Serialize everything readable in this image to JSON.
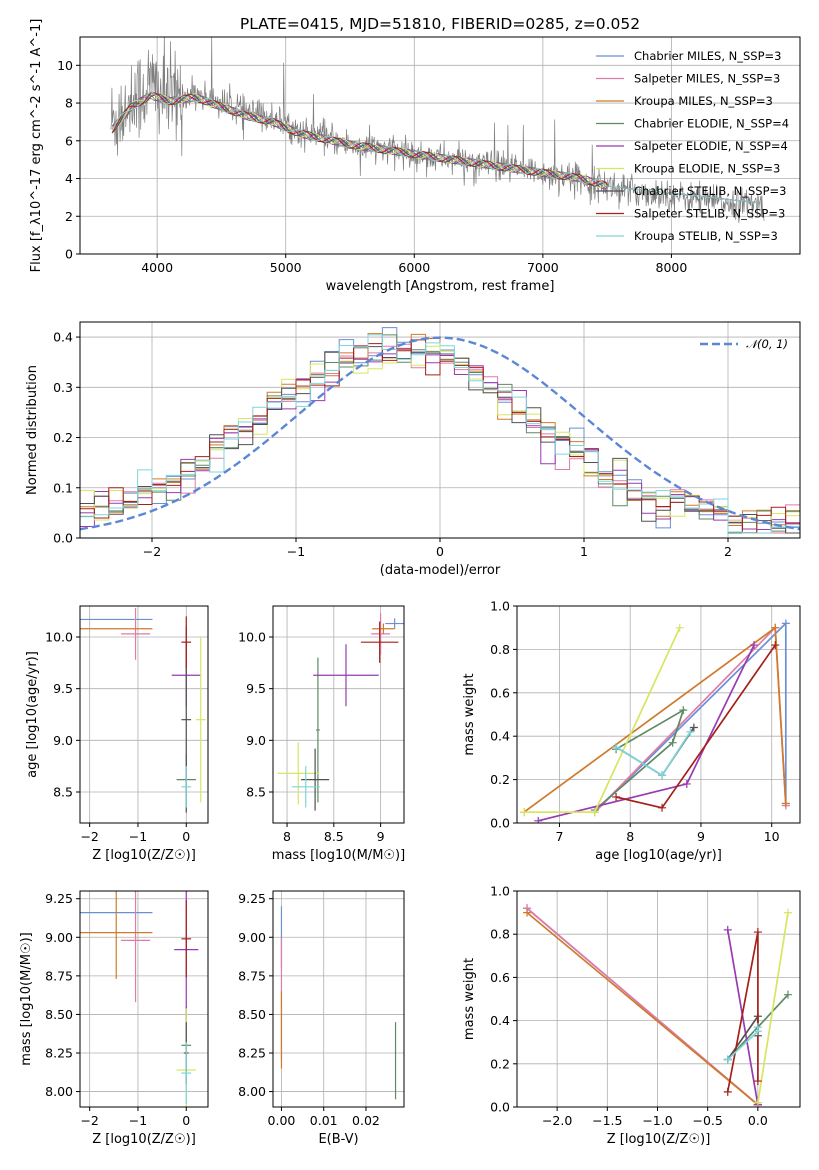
{
  "title": "PLATE=0415, MJD=51810, FIBERID=0285, z=0.052",
  "colors": {
    "data": "#7f7f7f",
    "models": [
      "#6a8fd4",
      "#e07aa9",
      "#cf7a2b",
      "#5e8a62",
      "#9a3ab2",
      "#d8e562",
      "#515151",
      "#a52018",
      "#7dd6db"
    ],
    "gaussian": "#5b87d6"
  },
  "chart_data": [
    {
      "id": "spectrum",
      "type": "line",
      "xlabel": "wavelength [Angstrom, rest frame]",
      "ylabel": "Flux [f_λ10^-17 erg cm^-2 s^-1 A^-1]",
      "xlim": [
        3400,
        9000
      ],
      "ylim": [
        0,
        11.5
      ],
      "xticks": [
        4000,
        5000,
        6000,
        7000,
        8000
      ],
      "yticks": [
        0,
        2,
        4,
        6,
        8,
        10
      ],
      "legend_position": "top-right",
      "data_series": {
        "name": "",
        "x": [
          3650,
          3800,
          3950,
          4100,
          4300,
          4500,
          4700,
          4900,
          5100,
          5300,
          5500,
          5700,
          5900,
          6100,
          6300,
          6500,
          6700,
          6900,
          7100,
          7300,
          7500,
          7700,
          7900,
          8100,
          8300,
          8500,
          8700
        ],
        "y": [
          7.0,
          8.0,
          9.0,
          8.2,
          8.5,
          8.0,
          7.5,
          7.2,
          6.5,
          6.2,
          5.8,
          5.6,
          5.4,
          5.2,
          5.0,
          4.8,
          4.6,
          4.4,
          4.2,
          4.0,
          3.6,
          3.3,
          3.2,
          3.0,
          2.8,
          2.7,
          2.6
        ]
      },
      "series": [
        {
          "name": "Chabrier MILES, N_SSP=3"
        },
        {
          "name": "Salpeter MILES, N_SSP=3"
        },
        {
          "name": "Kroupa MILES, N_SSP=3"
        },
        {
          "name": "Chabrier ELODIE, N_SSP=4"
        },
        {
          "name": "Salpeter ELODIE, N_SSP=4"
        },
        {
          "name": "Kroupa ELODIE, N_SSP=3"
        },
        {
          "name": "Chabrier STELIB, N_SSP=3"
        },
        {
          "name": "Salpeter STELIB, N_SSP=3"
        },
        {
          "name": "Kroupa STELIB, N_SSP=3"
        }
      ],
      "model_x": [
        3650,
        3800,
        3950,
        4100,
        4300,
        4500,
        4700,
        4900,
        5100,
        5300,
        5500,
        5700,
        5900,
        6100,
        6300,
        6500,
        6700,
        6900,
        7100,
        7300,
        7500
      ],
      "model_y": [
        6.6,
        7.8,
        8.4,
        8.1,
        8.3,
        7.8,
        7.3,
        7.0,
        6.4,
        6.1,
        5.8,
        5.6,
        5.4,
        5.2,
        5.0,
        4.8,
        4.6,
        4.4,
        4.2,
        4.0,
        3.6
      ]
    },
    {
      "id": "residuals",
      "type": "line",
      "xlabel": "(data-model)/error",
      "ylabel": "Normed distribution",
      "xlim": [
        -2.5,
        2.5
      ],
      "ylim": [
        0,
        0.43
      ],
      "xticks": [
        -2,
        -1,
        0,
        1,
        2
      ],
      "yticks": [
        0.0,
        0.1,
        0.2,
        0.3,
        0.4
      ],
      "legend": "𝒩(0, 1)",
      "legend_position": "top-right",
      "bin_width": 0.1
    },
    {
      "id": "age-vs-Z",
      "type": "scatter",
      "xlabel": "Z [log10(Z/Z☉)]",
      "ylabel": "age [log10(age/yr)]",
      "xlim": [
        -2.2,
        0.45
      ],
      "ylim": [
        8.2,
        10.3
      ],
      "xticks": [
        -2,
        -1,
        0
      ],
      "yticks": [
        8.5,
        9.0,
        9.5,
        10.0
      ],
      "points": [
        {
          "x": -1.45,
          "xerr": 0.75,
          "y": 10.17,
          "yerr": 0.0
        },
        {
          "x": -1.05,
          "xerr": 0.3,
          "y": 10.03,
          "yerr": 0.25
        },
        {
          "x": -1.45,
          "xerr": 0.75,
          "y": 10.08,
          "yerr": 0.0
        },
        {
          "x": 0.0,
          "xerr": 0.2,
          "y": 8.62,
          "yerr": 0.25
        },
        {
          "x": 0.0,
          "xerr": 0.3,
          "y": 9.63,
          "yerr": 0.3
        },
        {
          "x": 0.3,
          "xerr": 0.1,
          "y": 9.2,
          "yerr": 0.8
        },
        {
          "x": 0.0,
          "xerr": 0.1,
          "y": 9.2,
          "yerr": 0.9
        },
        {
          "x": 0.0,
          "xerr": 0.1,
          "y": 9.95,
          "yerr": 0.25
        },
        {
          "x": 0.0,
          "xerr": 0.1,
          "y": 8.55,
          "yerr": 0.2
        }
      ]
    },
    {
      "id": "age-vs-mass",
      "type": "scatter",
      "xlabel": "mass [log10(M/M☉)]",
      "ylabel": "",
      "xlim": [
        7.85,
        9.25
      ],
      "ylim": [
        8.2,
        10.3
      ],
      "xticks": [
        8.0,
        8.5,
        9.0
      ],
      "yticks": [
        8.5,
        9.0,
        9.5,
        10.0
      ],
      "points": [
        {
          "x": 9.15,
          "xerr": 0.1,
          "y": 10.13,
          "yerr": 0.05
        },
        {
          "x": 9.0,
          "xerr": 0.1,
          "y": 10.03,
          "yerr": 0.2
        },
        {
          "x": 9.03,
          "xerr": 0.12,
          "y": 10.08,
          "yerr": 0.05
        },
        {
          "x": 8.33,
          "xerr": 0.02,
          "y": 9.1,
          "yerr": 0.7
        },
        {
          "x": 8.63,
          "xerr": 0.35,
          "y": 9.63,
          "yerr": 0.3
        },
        {
          "x": 8.12,
          "xerr": 0.22,
          "y": 8.68,
          "yerr": 0.3
        },
        {
          "x": 8.3,
          "xerr": 0.15,
          "y": 8.62,
          "yerr": 0.3
        },
        {
          "x": 8.99,
          "xerr": 0.2,
          "y": 9.95,
          "yerr": 0.2
        },
        {
          "x": 8.2,
          "xerr": 0.15,
          "y": 8.55,
          "yerr": 0.2
        }
      ]
    },
    {
      "id": "weight-vs-age",
      "type": "line",
      "xlabel": "age [log10(age/yr)]",
      "ylabel": "mass weight",
      "xlim": [
        6.4,
        10.4
      ],
      "ylim": [
        0.0,
        1.0
      ],
      "xticks": [
        7,
        8,
        9,
        10
      ],
      "yticks": [
        0.0,
        0.2,
        0.4,
        0.6,
        0.8,
        1.0
      ],
      "series": [
        {
          "x": [
            7.5,
            10.2,
            10.2
          ],
          "y": [
            0.05,
            0.92,
            0.09
          ]
        },
        {
          "x": [
            7.5,
            10.05,
            10.2
          ],
          "y": [
            0.05,
            0.9,
            0.08
          ]
        },
        {
          "x": [
            6.5,
            10.05,
            10.2
          ],
          "y": [
            0.05,
            0.9,
            0.09
          ]
        },
        {
          "x": [
            7.5,
            8.6,
            8.75,
            7.8
          ],
          "y": [
            0.06,
            0.37,
            0.52,
            0.34
          ]
        },
        {
          "x": [
            6.7,
            8.8,
            9.75
          ],
          "y": [
            0.01,
            0.18,
            0.82
          ]
        },
        {
          "x": [
            6.5,
            7.5,
            8.7
          ],
          "y": [
            0.05,
            0.05,
            0.9
          ]
        },
        {
          "x": [
            7.8,
            8.45,
            8.9
          ],
          "y": [
            0.35,
            0.22,
            0.44
          ]
        },
        {
          "x": [
            7.8,
            8.45,
            10.05
          ],
          "y": [
            0.12,
            0.07,
            0.82
          ]
        },
        {
          "x": [
            7.8,
            8.45,
            8.85
          ],
          "y": [
            0.35,
            0.22,
            0.42
          ]
        }
      ]
    },
    {
      "id": "mass-vs-Z",
      "type": "scatter",
      "xlabel": "Z [log10(Z/Z☉)]",
      "ylabel": "mass [log10(M/M☉)]",
      "xlim": [
        -2.2,
        0.45
      ],
      "ylim": [
        7.9,
        9.3
      ],
      "xticks": [
        -2,
        -1,
        0
      ],
      "yticks": [
        8.0,
        8.25,
        8.5,
        8.75,
        9.0,
        9.25
      ],
      "points": [
        {
          "x": -1.45,
          "xerr": 0.75,
          "y": 9.16,
          "yerr": 0.0
        },
        {
          "x": -1.05,
          "xerr": 0.3,
          "y": 8.98,
          "yerr": 0.4
        },
        {
          "x": -1.45,
          "xerr": 0.75,
          "y": 9.03,
          "yerr": 0.3
        },
        {
          "x": 0.0,
          "xerr": 0.1,
          "y": 8.3,
          "yerr": 0.25
        },
        {
          "x": 0.0,
          "xerr": 0.25,
          "y": 8.92,
          "yerr": 0.7
        },
        {
          "x": 0.0,
          "xerr": 0.2,
          "y": 8.14,
          "yerr": 0.4
        },
        {
          "x": 0.0,
          "xerr": 0.05,
          "y": 8.25,
          "yerr": 0.2
        },
        {
          "x": 0.0,
          "xerr": 0.1,
          "y": 8.99,
          "yerr": 0.25
        },
        {
          "x": 0.0,
          "xerr": 0.1,
          "y": 8.12,
          "yerr": 0.2
        }
      ]
    },
    {
      "id": "mass-vs-EBV",
      "type": "scatter",
      "xlabel": "E(B-V)",
      "ylabel": "",
      "xlim": [
        -0.002,
        0.029
      ],
      "ylim": [
        7.9,
        9.3
      ],
      "xticks": [
        0.0,
        0.01,
        0.02
      ],
      "xtick_labels": [
        "0.00",
        "0.01",
        "0.02"
      ],
      "yticks": [
        8.0,
        8.25,
        8.5,
        8.75,
        9.0,
        9.25
      ],
      "points": [
        {
          "x": 0.0,
          "y": 9.0,
          "yerr": 0.2
        },
        {
          "x": 0.0,
          "y": 8.6,
          "yerr": 0.4
        },
        {
          "x": 0.0,
          "y": 8.4,
          "yerr": 0.25
        },
        {
          "x": 0.027,
          "y": 8.2,
          "yerr": 0.25
        }
      ]
    },
    {
      "id": "weight-vs-Z",
      "type": "line",
      "xlabel": "Z [log10(Z/Z☉)]",
      "ylabel": "mass weight",
      "xlim": [
        -2.4,
        0.42
      ],
      "ylim": [
        0.0,
        1.0
      ],
      "xticks": [
        -2.0,
        -1.5,
        -1.0,
        -0.5,
        0.0
      ],
      "xtick_labels": [
        "−2.0",
        "−1.5",
        "−1.0",
        "−0.5",
        "0.0"
      ],
      "yticks": [
        0.0,
        0.2,
        0.4,
        0.6,
        0.8,
        1.0
      ],
      "series": [
        {
          "x": [
            -2.3,
            0.0,
            0.0
          ],
          "y": [
            0.92,
            0.01,
            0.01
          ]
        },
        {
          "x": [
            -2.3,
            0.0,
            0.0
          ],
          "y": [
            0.92,
            0.01,
            0.02
          ]
        },
        {
          "x": [
            -2.3,
            0.0
          ],
          "y": [
            0.9,
            0.01
          ]
        },
        {
          "x": [
            -0.3,
            0.3,
            0.0
          ],
          "y": [
            0.22,
            0.52,
            0.37
          ]
        },
        {
          "x": [
            -0.3,
            0.0,
            0.0
          ],
          "y": [
            0.82,
            0.01,
            0.01
          ]
        },
        {
          "x": [
            0.0,
            0.3
          ],
          "y": [
            0.02,
            0.9
          ]
        },
        {
          "x": [
            -0.3,
            0.0,
            0.0
          ],
          "y": [
            0.22,
            0.42,
            0.33
          ]
        },
        {
          "x": [
            -0.3,
            0.0,
            0.0
          ],
          "y": [
            0.07,
            0.81,
            0.12
          ]
        },
        {
          "x": [
            -0.3,
            0.0,
            0.0
          ],
          "y": [
            0.22,
            0.35,
            0.37
          ]
        }
      ]
    }
  ]
}
